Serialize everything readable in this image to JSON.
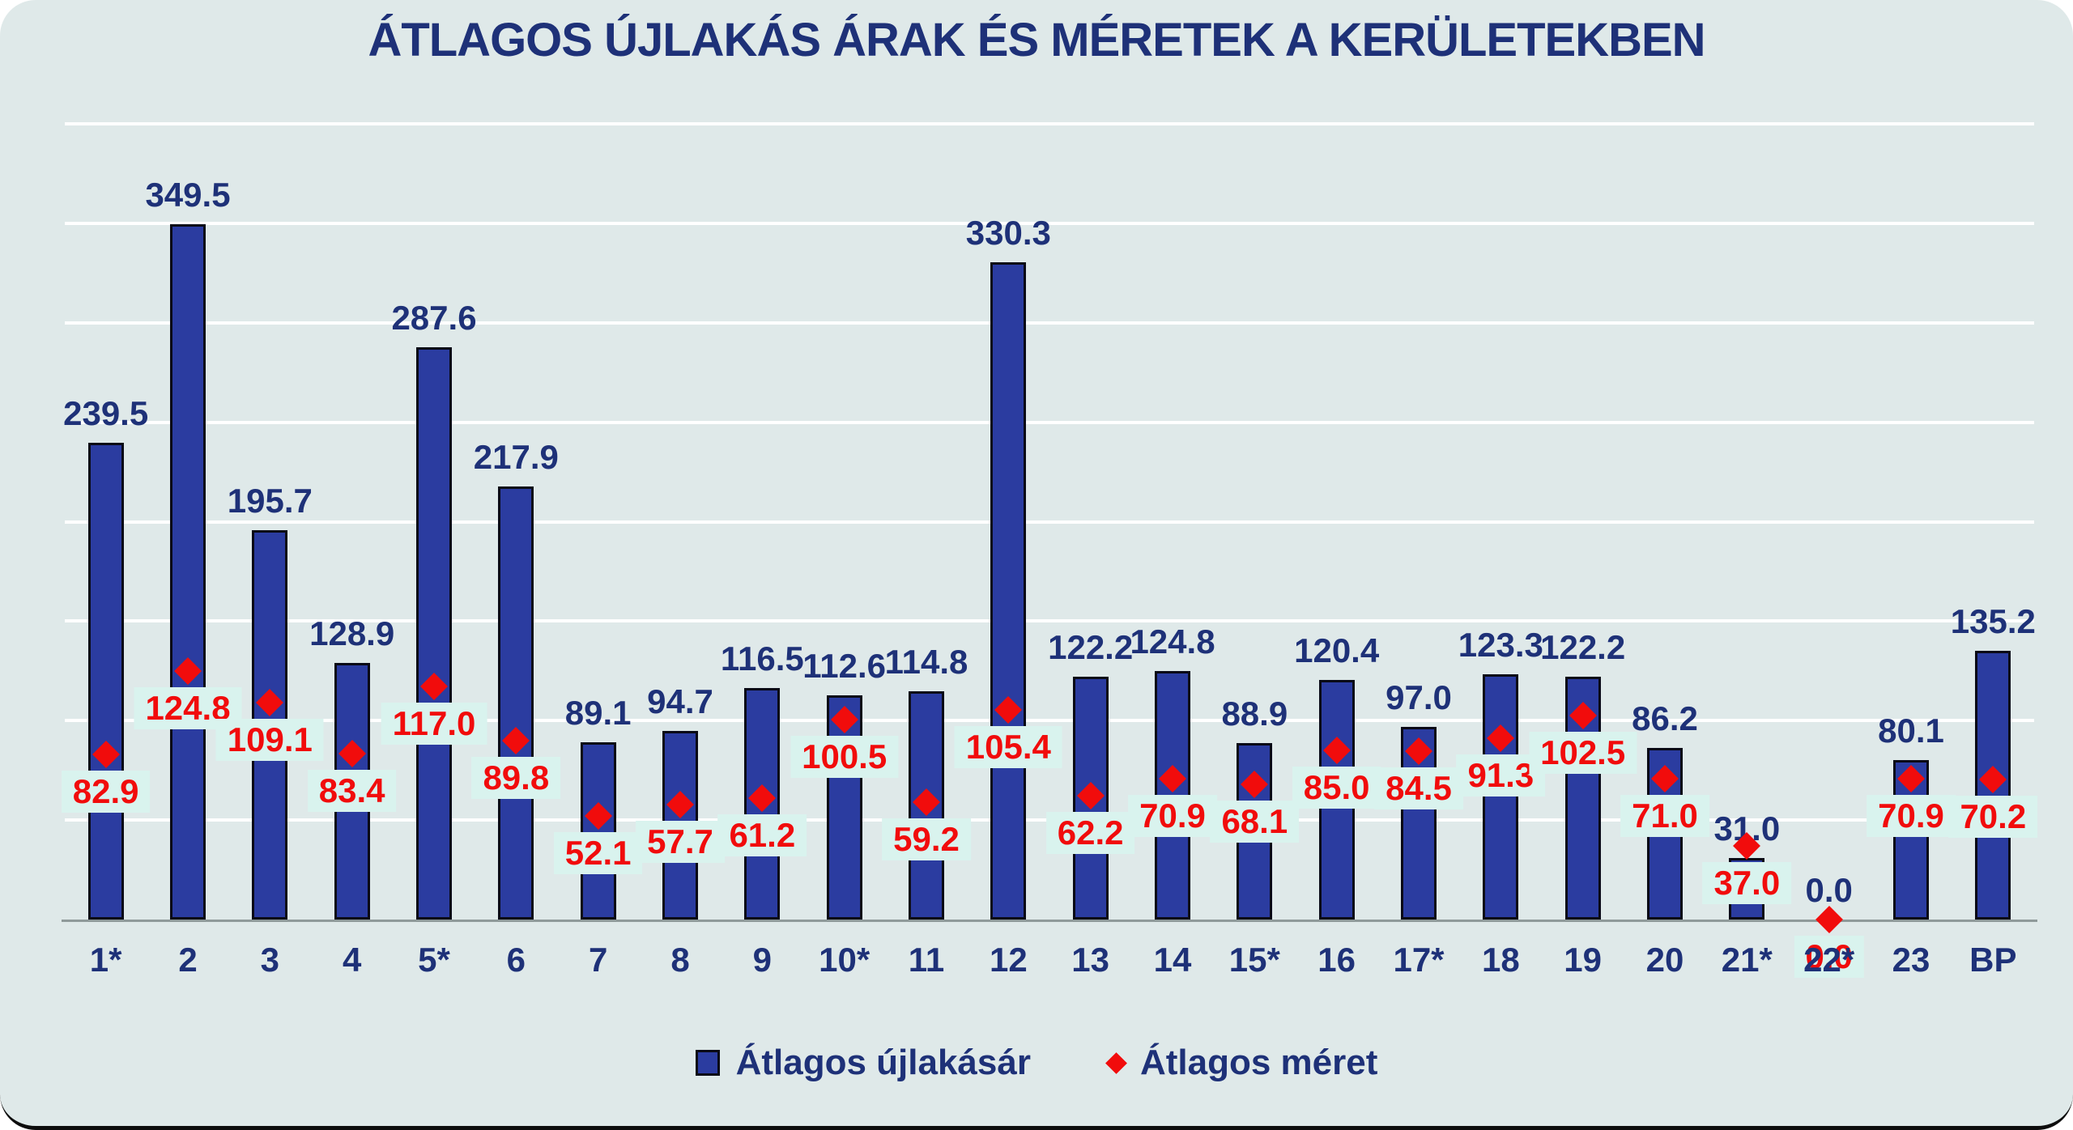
{
  "title": "ÁTLAGOS ÚJLAKÁS ÁRAK ÉS MÉRETEK A KERÜLETEKBEN",
  "legend": {
    "bar_label": "Átlagos újlakásár",
    "marker_label": "Átlagos méret"
  },
  "colors": {
    "background": "#dfe9e9",
    "bar_fill": "#2b3ca0",
    "bar_outline": "#0a0a16",
    "marker_red": "#f10c0c",
    "value_text_navy": "#1e3178",
    "size_label_box": "#d9f3ee",
    "gridline": "#ffffff",
    "axis_line": "#8f9a9a"
  },
  "chart_data": {
    "type": "bar",
    "title": "ÁTLAGOS ÚJLAKÁS ÁRAK ÉS MÉRETEK A KERÜLETEKBEN",
    "categories": [
      "1*",
      "2",
      "3",
      "4",
      "5*",
      "6",
      "7",
      "8",
      "9",
      "10*",
      "11",
      "12",
      "13",
      "14",
      "15*",
      "16",
      "17*",
      "18",
      "19",
      "20",
      "21*",
      "22*",
      "23",
      "BP"
    ],
    "series": [
      {
        "name": "Átlagos újlakásár",
        "type": "bar",
        "values": [
          239.5,
          349.5,
          195.7,
          128.9,
          287.6,
          217.9,
          89.1,
          94.7,
          116.5,
          112.6,
          114.8,
          330.3,
          122.2,
          124.8,
          88.9,
          120.4,
          97.0,
          123.3,
          122.2,
          86.2,
          31.0,
          0.0,
          80.1,
          135.2
        ]
      },
      {
        "name": "Átlagos méret",
        "type": "scatter",
        "values": [
          82.9,
          124.8,
          109.1,
          83.4,
          117.0,
          89.8,
          52.1,
          57.7,
          61.2,
          100.5,
          59.2,
          105.4,
          62.2,
          70.9,
          68.1,
          85.0,
          84.5,
          91.3,
          102.5,
          71.0,
          37.0,
          0.0,
          70.9,
          70.2
        ]
      }
    ],
    "xlabel": "",
    "ylabel": "",
    "ylim": [
      0,
      400
    ],
    "grid_step": 50,
    "grid": "on",
    "y_axis_labels_visible": false,
    "value_label_format": "one-decimal",
    "legend_position": "bottom"
  }
}
